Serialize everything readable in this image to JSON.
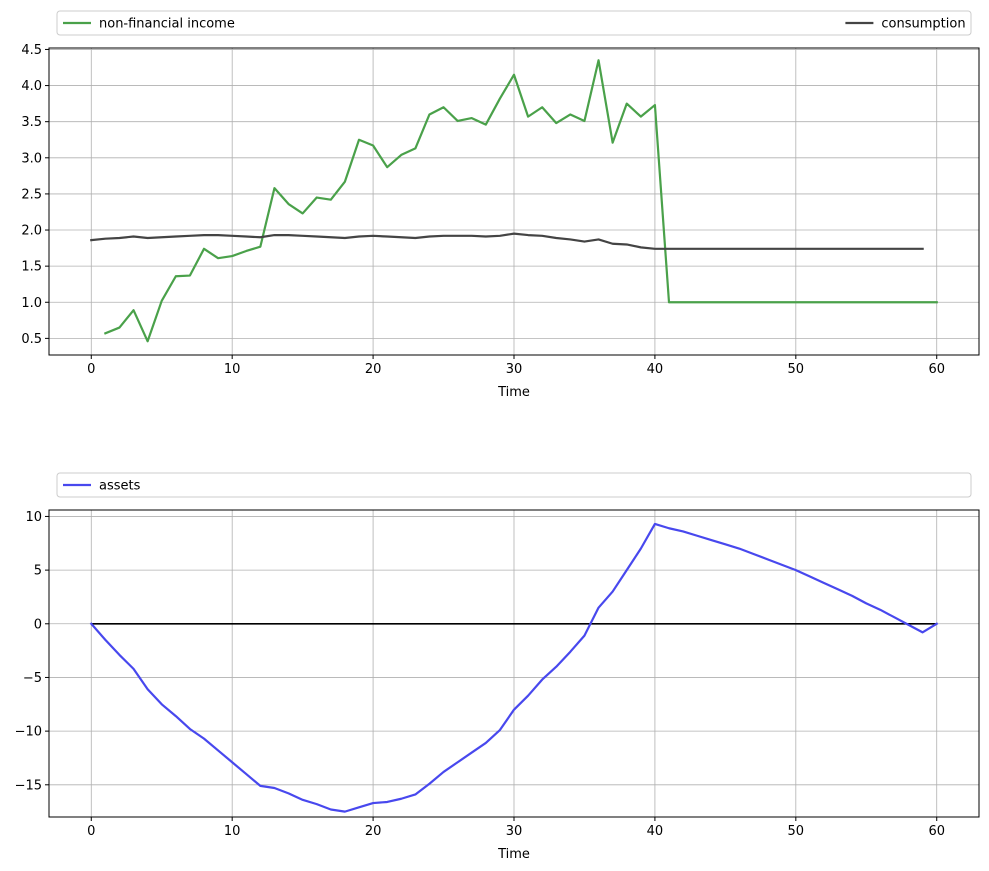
{
  "chart_data": [
    {
      "type": "line",
      "xlabel": "Time",
      "ylabel": "",
      "xlim": [
        -3,
        63
      ],
      "ylim": [
        0.27,
        4.52
      ],
      "xticks": [
        0,
        10,
        20,
        30,
        40,
        50,
        60
      ],
      "xtick_labels": [
        "0",
        "10",
        "20",
        "30",
        "40",
        "50",
        "60"
      ],
      "yticks": [
        0.5,
        1.0,
        1.5,
        2.0,
        2.5,
        3.0,
        3.5,
        4.0,
        4.5
      ],
      "ytick_labels": [
        "0.5",
        "1.0",
        "1.5",
        "2.0",
        "2.5",
        "3.0",
        "3.5",
        "4.0",
        "4.5"
      ],
      "grid": true,
      "legend_placement": "above",
      "series": [
        {
          "name": "non-financial income",
          "color": "#4aa14a",
          "x": [
            1,
            2,
            3,
            4,
            5,
            6,
            7,
            8,
            9,
            10,
            11,
            12,
            13,
            14,
            15,
            16,
            17,
            18,
            19,
            20,
            21,
            22,
            23,
            24,
            25,
            26,
            27,
            28,
            29,
            30,
            31,
            32,
            33,
            34,
            35,
            36,
            37,
            38,
            39,
            40,
            41,
            42,
            43,
            44,
            45,
            46,
            47,
            48,
            49,
            50,
            51,
            52,
            53,
            54,
            55,
            56,
            57,
            58,
            59,
            60
          ],
          "values": [
            0.57,
            0.65,
            0.89,
            0.46,
            1.02,
            1.36,
            1.37,
            1.74,
            1.61,
            1.64,
            1.71,
            1.77,
            2.58,
            2.36,
            2.23,
            2.45,
            2.42,
            2.67,
            3.25,
            3.17,
            2.87,
            3.04,
            3.13,
            3.6,
            3.7,
            3.51,
            3.55,
            3.46,
            3.82,
            4.15,
            3.57,
            3.7,
            3.48,
            3.6,
            3.51,
            4.35,
            3.21,
            3.75,
            3.57,
            3.73,
            1.0,
            1.0,
            1.0,
            1.0,
            1.0,
            1.0,
            1.0,
            1.0,
            1.0,
            1.0,
            1.0,
            1.0,
            1.0,
            1.0,
            1.0,
            1.0,
            1.0,
            1.0,
            1.0,
            1.0
          ]
        },
        {
          "name": "consumption",
          "color": "#444444",
          "x": [
            0,
            1,
            2,
            3,
            4,
            5,
            6,
            7,
            8,
            9,
            10,
            11,
            12,
            13,
            14,
            15,
            16,
            17,
            18,
            19,
            20,
            21,
            22,
            23,
            24,
            25,
            26,
            27,
            28,
            29,
            30,
            31,
            32,
            33,
            34,
            35,
            36,
            37,
            38,
            39,
            40,
            41,
            42,
            43,
            44,
            45,
            46,
            47,
            48,
            49,
            50,
            51,
            52,
            53,
            54,
            55,
            56,
            57,
            58,
            59
          ],
          "values": [
            1.86,
            1.88,
            1.89,
            1.91,
            1.89,
            1.9,
            1.91,
            1.92,
            1.93,
            1.93,
            1.92,
            1.91,
            1.9,
            1.93,
            1.93,
            1.92,
            1.91,
            1.9,
            1.89,
            1.91,
            1.92,
            1.91,
            1.9,
            1.89,
            1.91,
            1.92,
            1.92,
            1.92,
            1.91,
            1.92,
            1.95,
            1.93,
            1.92,
            1.89,
            1.87,
            1.84,
            1.87,
            1.81,
            1.8,
            1.76,
            1.74,
            1.74,
            1.74,
            1.74,
            1.74,
            1.74,
            1.74,
            1.74,
            1.74,
            1.74,
            1.74,
            1.74,
            1.74,
            1.74,
            1.74,
            1.74,
            1.74,
            1.74,
            1.74,
            1.74
          ]
        }
      ]
    },
    {
      "type": "line",
      "xlabel": "Time",
      "ylabel": "",
      "xlim": [
        -3,
        63
      ],
      "ylim": [
        -18,
        10.6
      ],
      "xticks": [
        0,
        10,
        20,
        30,
        40,
        50,
        60
      ],
      "xtick_labels": [
        "0",
        "10",
        "20",
        "30",
        "40",
        "50",
        "60"
      ],
      "yticks": [
        -15,
        -10,
        -5,
        0,
        5,
        10
      ],
      "ytick_labels": [
        "−15",
        "−10",
        "−5",
        "0",
        "5",
        "10"
      ],
      "grid": true,
      "zero_line": true,
      "legend_placement": "above",
      "series": [
        {
          "name": "assets",
          "color": "#4848ee",
          "x": [
            0,
            1,
            2,
            3,
            4,
            5,
            6,
            7,
            8,
            9,
            10,
            11,
            12,
            13,
            14,
            15,
            16,
            17,
            18,
            19,
            20,
            21,
            22,
            23,
            24,
            25,
            26,
            27,
            28,
            29,
            30,
            31,
            32,
            33,
            34,
            35,
            36,
            37,
            38,
            39,
            40,
            41,
            42,
            43,
            44,
            45,
            46,
            47,
            48,
            49,
            50,
            51,
            52,
            53,
            54,
            55,
            56,
            57,
            58,
            59,
            60
          ],
          "values": [
            0,
            -1.5,
            -2.9,
            -4.2,
            -6.1,
            -7.5,
            -8.6,
            -9.8,
            -10.7,
            -11.8,
            -12.9,
            -14,
            -15.1,
            -15.3,
            -15.8,
            -16.4,
            -16.8,
            -17.3,
            -17.5,
            -17.1,
            -16.7,
            -16.6,
            -16.3,
            -15.9,
            -14.9,
            -13.8,
            -12.9,
            -12,
            -11.1,
            -9.9,
            -8,
            -6.7,
            -5.2,
            -4,
            -2.6,
            -1.1,
            1.5,
            3,
            5,
            7,
            9.3,
            8.9,
            8.6,
            8.2,
            7.8,
            7.4,
            7,
            6.5,
            6,
            5.5,
            5,
            4.4,
            3.8,
            3.2,
            2.6,
            1.9,
            1.3,
            0.6,
            -0.1,
            -0.8,
            0
          ]
        }
      ]
    }
  ]
}
